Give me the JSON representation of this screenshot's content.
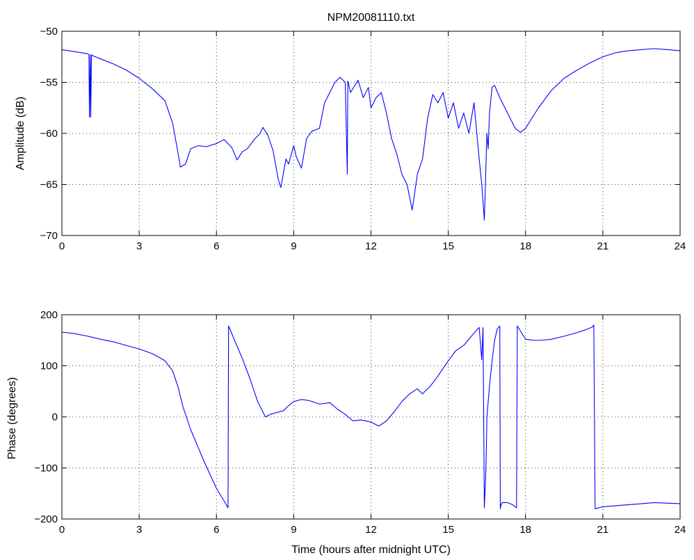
{
  "figure": {
    "title": "NPM20081110.txt"
  },
  "chart_data": [
    {
      "type": "line",
      "title": "NPM20081110.txt",
      "xlabel": "",
      "ylabel": "Amplitude (dB)",
      "xlim": [
        0,
        24
      ],
      "ylim": [
        -70,
        -50
      ],
      "xticks": [
        0,
        3,
        6,
        9,
        12,
        15,
        18,
        21,
        24
      ],
      "yticks": [
        -70,
        -65,
        -60,
        -55,
        -50
      ],
      "grid": true,
      "series": [
        {
          "color": "#0000ff",
          "x": [
            0,
            0.5,
            1.0,
            1.05,
            1.07,
            1.1,
            1.12,
            1.15,
            1.2,
            1.5,
            2.0,
            2.5,
            3.0,
            3.5,
            4.0,
            4.3,
            4.5,
            4.6,
            4.8,
            5.0,
            5.3,
            5.6,
            6.0,
            6.3,
            6.6,
            6.8,
            7.0,
            7.2,
            7.5,
            7.7,
            7.8,
            8.0,
            8.2,
            8.4,
            8.5,
            8.7,
            8.8,
            9.0,
            9.1,
            9.3,
            9.5,
            9.7,
            10.0,
            10.2,
            10.4,
            10.6,
            10.8,
            11.0,
            11.08,
            11.1,
            11.12,
            11.2,
            11.5,
            11.7,
            11.9,
            12.0,
            12.2,
            12.4,
            12.6,
            12.8,
            13.0,
            13.2,
            13.4,
            13.6,
            13.8,
            14.0,
            14.2,
            14.4,
            14.6,
            14.8,
            15.0,
            15.2,
            15.4,
            15.6,
            15.8,
            16.0,
            16.2,
            16.3,
            16.4,
            16.5,
            16.55,
            16.6,
            16.7,
            16.8,
            17.0,
            17.3,
            17.6,
            17.8,
            18.0,
            18.5,
            19.0,
            19.5,
            20.0,
            20.5,
            21.0,
            21.5,
            22.0,
            22.5,
            23.0,
            23.5,
            24.0
          ],
          "y": [
            -51.8,
            -52.0,
            -52.2,
            -52.3,
            -58.4,
            -52.3,
            -58.4,
            -52.3,
            -52.4,
            -52.7,
            -53.2,
            -53.8,
            -54.6,
            -55.6,
            -56.8,
            -59.0,
            -61.8,
            -63.3,
            -63.0,
            -61.5,
            -61.2,
            -61.3,
            -61.0,
            -60.6,
            -61.4,
            -62.6,
            -61.8,
            -61.5,
            -60.5,
            -60.0,
            -59.4,
            -60.2,
            -61.7,
            -64.5,
            -65.3,
            -62.5,
            -63.0,
            -61.2,
            -62.3,
            -63.4,
            -60.5,
            -59.8,
            -59.5,
            -57.0,
            -56.0,
            -55.0,
            -54.5,
            -55.0,
            -64.0,
            -54.9,
            -55.0,
            -56.0,
            -54.8,
            -56.5,
            -55.5,
            -57.5,
            -56.5,
            -56.0,
            -58.0,
            -60.5,
            -62.0,
            -64.0,
            -65.0,
            -67.5,
            -64.0,
            -62.5,
            -58.5,
            -56.2,
            -57.0,
            -56.0,
            -58.5,
            -57.0,
            -59.5,
            -58.0,
            -60.0,
            -57.0,
            -62.5,
            -65.0,
            -68.5,
            -60.0,
            -61.5,
            -58.0,
            -55.5,
            -55.3,
            -56.5,
            -58.0,
            -59.5,
            -59.9,
            -59.5,
            -57.5,
            -55.8,
            -54.6,
            -53.8,
            -53.1,
            -52.5,
            -52.1,
            -51.9,
            -51.8,
            -51.7,
            -51.8,
            -51.9
          ]
        }
      ]
    },
    {
      "type": "line",
      "title": "",
      "xlabel": "Time (hours after midnight UTC)",
      "ylabel": "Phase (degrees)",
      "xlim": [
        0,
        24
      ],
      "ylim": [
        -200,
        200
      ],
      "xticks": [
        0,
        3,
        6,
        9,
        12,
        15,
        18,
        21,
        24
      ],
      "yticks": [
        -200,
        -100,
        0,
        100,
        200
      ],
      "grid": true,
      "series": [
        {
          "color": "#0000ff",
          "x": [
            0,
            0.5,
            1.0,
            1.5,
            2.0,
            2.5,
            3.0,
            3.5,
            4.0,
            4.3,
            4.5,
            4.7,
            5.0,
            5.5,
            6.0,
            6.3,
            6.45,
            6.47,
            6.5,
            6.7,
            7.0,
            7.3,
            7.6,
            7.9,
            8.1,
            8.3,
            8.6,
            8.8,
            9.0,
            9.3,
            9.6,
            10.0,
            10.4,
            10.7,
            11.0,
            11.3,
            11.6,
            12.0,
            12.3,
            12.6,
            12.9,
            13.2,
            13.5,
            13.8,
            14.0,
            14.3,
            14.6,
            15.0,
            15.3,
            15.6,
            15.9,
            16.1,
            16.2,
            16.3,
            16.35,
            16.4,
            16.45,
            16.48,
            16.5,
            16.6,
            16.7,
            16.8,
            16.9,
            17.0,
            17.02,
            17.05,
            17.1,
            17.3,
            17.5,
            17.65,
            17.68,
            17.72,
            17.9,
            18.0,
            18.3,
            18.6,
            19.0,
            19.5,
            20.0,
            20.3,
            20.6,
            20.65,
            20.7,
            21.0,
            21.5,
            22.0,
            22.5,
            23.0,
            23.5,
            24.0
          ],
          "y": [
            166,
            163,
            158,
            152,
            147,
            140,
            133,
            124,
            110,
            90,
            60,
            20,
            -25,
            -85,
            -140,
            -165,
            -178,
            178,
            175,
            150,
            115,
            75,
            30,
            0,
            5,
            8,
            12,
            22,
            30,
            34,
            32,
            25,
            28,
            15,
            5,
            -8,
            -6,
            -10,
            -18,
            -8,
            10,
            30,
            45,
            55,
            45,
            60,
            80,
            110,
            130,
            140,
            158,
            170,
            175,
            112,
            175,
            -178,
            -120,
            -60,
            0,
            60,
            110,
            150,
            172,
            178,
            -180,
            -172,
            -168,
            -168,
            -172,
            -178,
            178,
            175,
            160,
            152,
            150,
            150,
            152,
            158,
            165,
            170,
            176,
            180,
            -180,
            -176,
            -174,
            -172,
            -170,
            -168,
            -169,
            -170
          ]
        }
      ]
    }
  ]
}
